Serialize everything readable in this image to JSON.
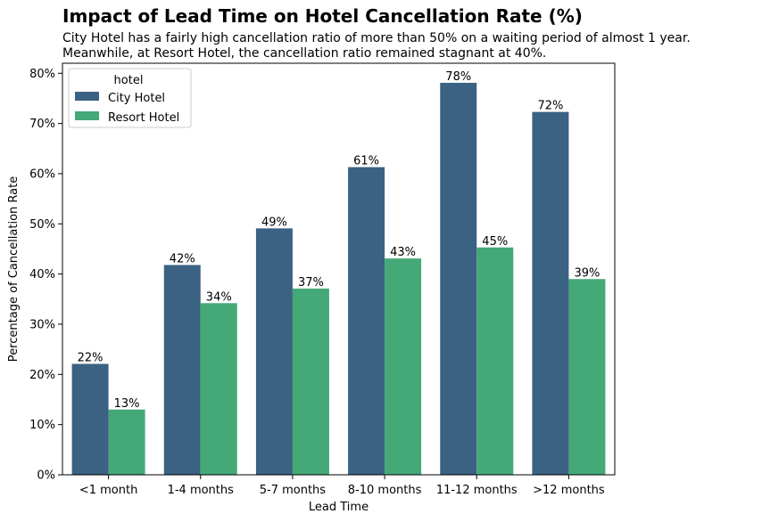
{
  "title": "Impact of Lead Time on Hotel Cancellation Rate (%)",
  "subtitle_line1": "City Hotel has a fairly high cancellation ratio of more than 50% on a waiting period of almost 1 year.",
  "subtitle_line2": "Meanwhile, at Resort Hotel, the cancellation ratio remained stagnant at 40%.",
  "colors": {
    "city": "#3b6282",
    "resort": "#44a877"
  },
  "chart_data": {
    "type": "bar",
    "xlabel": "Lead Time",
    "ylabel": "Percentage of Cancellation Rate",
    "ylim": [
      0,
      82
    ],
    "yticks": [
      0,
      10,
      20,
      30,
      40,
      50,
      60,
      70,
      80
    ],
    "ytick_labels": [
      "0%",
      "10%",
      "20%",
      "30%",
      "40%",
      "50%",
      "60%",
      "70%",
      "80%"
    ],
    "categories": [
      "<1 month",
      "1-4 months",
      "5-7 months",
      "8-10 months",
      "11-12 months",
      ">12 months"
    ],
    "legend_title": "hotel",
    "legend_position": "top-left",
    "grid": false,
    "series": [
      {
        "name": "City Hotel",
        "values": [
          22.1,
          41.8,
          49.1,
          61.3,
          78.1,
          72.3
        ],
        "labels": [
          "22%",
          "42%",
          "49%",
          "61%",
          "78%",
          "72%"
        ]
      },
      {
        "name": "Resort Hotel",
        "values": [
          13.0,
          34.2,
          37.1,
          43.1,
          45.3,
          39.0
        ],
        "labels": [
          "13%",
          "34%",
          "37%",
          "43%",
          "45%",
          "39%"
        ]
      }
    ]
  }
}
